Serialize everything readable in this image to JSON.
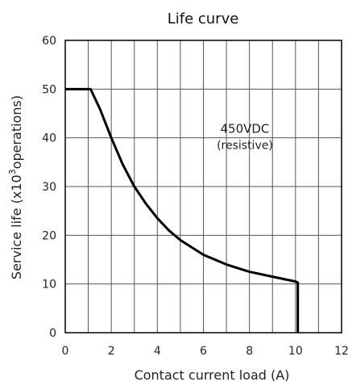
{
  "chart_data": {
    "type": "line",
    "title": "Life curve",
    "xlabel": "Contact current load (A)",
    "ylabel_main": "Service life (x10",
    "ylabel_sup": "3",
    "ylabel_tail": "operations)",
    "xlim": [
      0,
      12
    ],
    "ylim": [
      0,
      60
    ],
    "x_ticks": [
      0,
      2,
      4,
      6,
      8,
      10,
      12
    ],
    "x_tick_labels": [
      "0",
      "2",
      "4",
      "6",
      "8",
      "10",
      "12"
    ],
    "y_ticks": [
      0,
      10,
      20,
      30,
      40,
      50,
      60
    ],
    "y_tick_labels": [
      "0",
      "10",
      "20",
      "30",
      "40",
      "50",
      "60"
    ],
    "x_grid": [
      1,
      2,
      3,
      4,
      5,
      6,
      7,
      8,
      9,
      10,
      11
    ],
    "y_grid": [
      10,
      20,
      30,
      40,
      50
    ],
    "grid": true,
    "annotation": {
      "line1": "450VDC",
      "line2": "(resistive)",
      "x": 7.8,
      "y": 40
    },
    "series": [
      {
        "x": [
          0,
          1.1,
          1.5,
          2,
          2.5,
          3,
          3.5,
          4,
          4.5,
          5,
          6,
          7,
          8,
          9,
          10,
          10.1,
          10.1
        ],
        "y": [
          50,
          50,
          46,
          40,
          34.5,
          30,
          26.5,
          23.5,
          21,
          19,
          16,
          14,
          12.5,
          11.5,
          10.5,
          10.3,
          0
        ]
      }
    ]
  }
}
